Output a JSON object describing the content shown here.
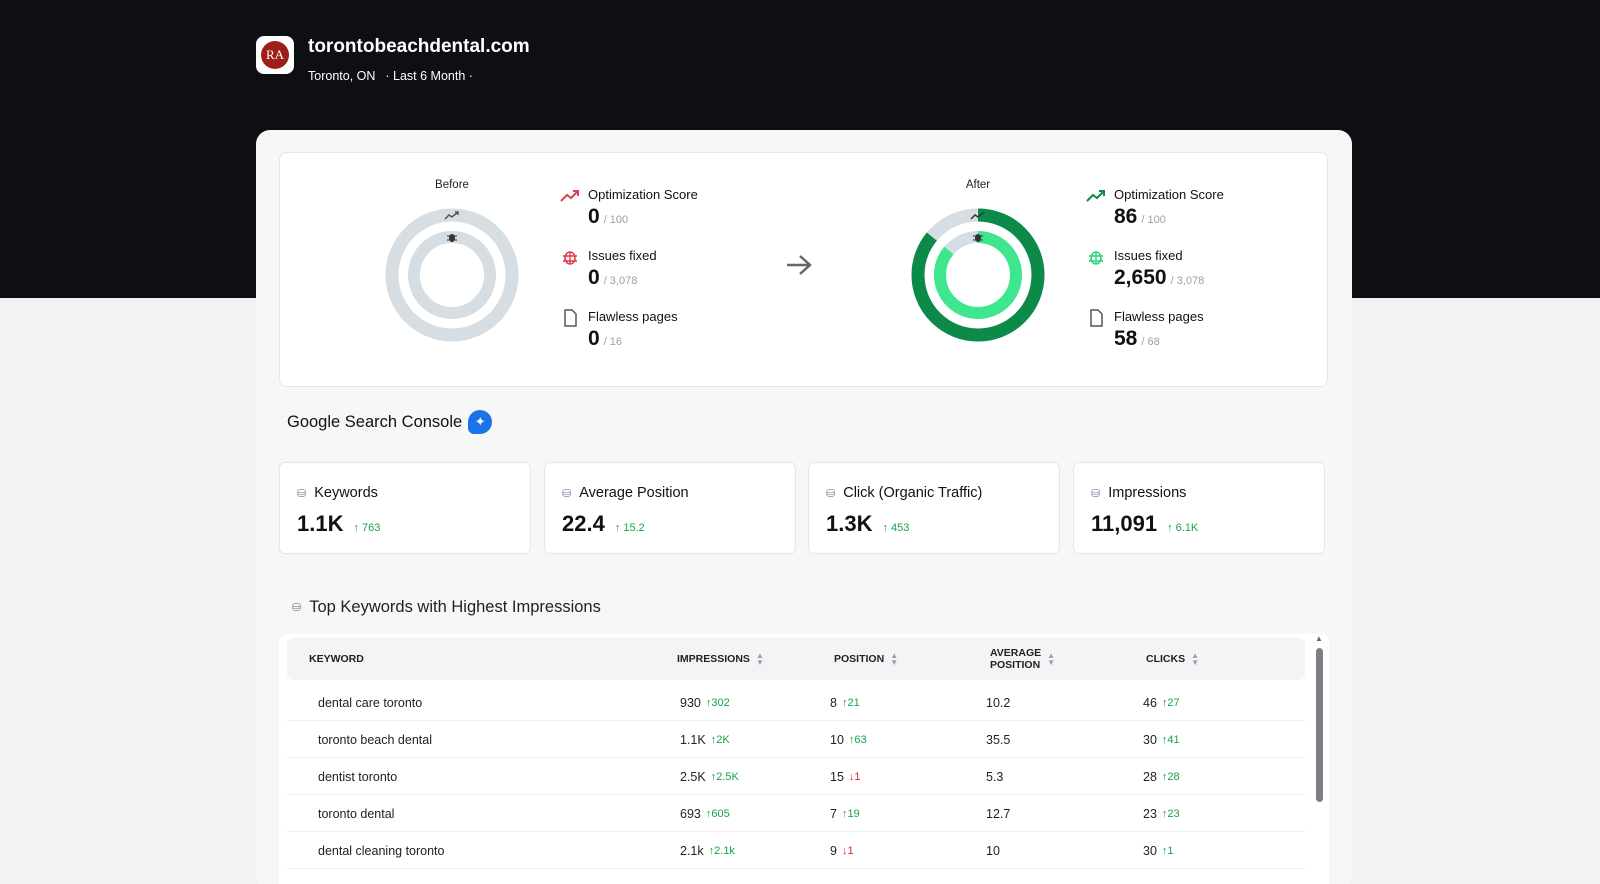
{
  "header": {
    "logo_text": "RA",
    "site": "torontobeachdental.com",
    "location": "Toronto, ON",
    "period": "· Last 6 Month ·"
  },
  "before": {
    "label": "Before",
    "optimization": {
      "label": "Optimization Score",
      "value": "0",
      "max": "/ 100"
    },
    "issues": {
      "label": "Issues fixed",
      "value": "0",
      "max": "/ 3,078"
    },
    "pages": {
      "label": "Flawless pages",
      "value": "0",
      "max": "/ 16"
    },
    "outer_progress": 0,
    "inner_progress": 0
  },
  "after": {
    "label": "After",
    "optimization": {
      "label": "Optimization Score",
      "value": "86",
      "max": "/ 100"
    },
    "issues": {
      "label": "Issues fixed",
      "value": "2,650",
      "max": "/ 3,078"
    },
    "pages": {
      "label": "Flawless pages",
      "value": "58",
      "max": "/ 68"
    },
    "outer_progress": 0.86,
    "inner_progress": 0.86
  },
  "gsc": {
    "title": "Google Search Console",
    "kpis": [
      {
        "label": "Keywords",
        "value": "1.1K",
        "delta": "763"
      },
      {
        "label": "Average Position",
        "value": "22.4",
        "delta": "15.2"
      },
      {
        "label": "Click (Organic Traffic)",
        "value": "1.3K",
        "delta": "453"
      },
      {
        "label": "Impressions",
        "value": "11,091",
        "delta": "6.1K"
      }
    ]
  },
  "top_keywords": {
    "title": "Top Keywords with Highest Impressions",
    "columns": {
      "keyword": "KEYWORD",
      "impressions": "IMPRESSIONS",
      "position": "POSITION",
      "avg_position_1": "AVERAGE",
      "avg_position_2": "POSITION",
      "clicks": "CLICKS"
    },
    "rows": [
      {
        "keyword": "dental care toronto",
        "impressions": "930",
        "imp_delta": "302",
        "imp_dir": "up",
        "position": "8",
        "pos_delta": "21",
        "pos_dir": "up",
        "avg_position": "10.2",
        "clicks": "46",
        "clk_delta": "27",
        "clk_dir": "up"
      },
      {
        "keyword": "toronto beach dental",
        "impressions": "1.1K",
        "imp_delta": "2K",
        "imp_dir": "up",
        "position": "10",
        "pos_delta": "63",
        "pos_dir": "up",
        "avg_position": "35.5",
        "clicks": "30",
        "clk_delta": "41",
        "clk_dir": "up"
      },
      {
        "keyword": "dentist toronto",
        "impressions": "2.5K",
        "imp_delta": "2.5K",
        "imp_dir": "up",
        "position": "15",
        "pos_delta": "1",
        "pos_dir": "down",
        "avg_position": "5.3",
        "clicks": "28",
        "clk_delta": "28",
        "clk_dir": "up"
      },
      {
        "keyword": "toronto dental",
        "impressions": "693",
        "imp_delta": "605",
        "imp_dir": "up",
        "position": "7",
        "pos_delta": "19",
        "pos_dir": "up",
        "avg_position": "12.7",
        "clicks": "23",
        "clk_delta": "23",
        "clk_dir": "up"
      },
      {
        "keyword": "dental cleaning toronto",
        "impressions": "2.1k",
        "imp_delta": "2.1k",
        "imp_dir": "up",
        "position": "9",
        "pos_delta": "1",
        "pos_dir": "down",
        "avg_position": "10",
        "clicks": "30",
        "clk_delta": "1",
        "clk_dir": "up"
      }
    ]
  },
  "colors": {
    "dark_bg": "#0e0f13",
    "good_outer": "#0b8a4a",
    "good_inner": "#3ee68e",
    "neutral_ring": "#d6dde3",
    "up": "#16a34a",
    "down": "#dc2626"
  }
}
